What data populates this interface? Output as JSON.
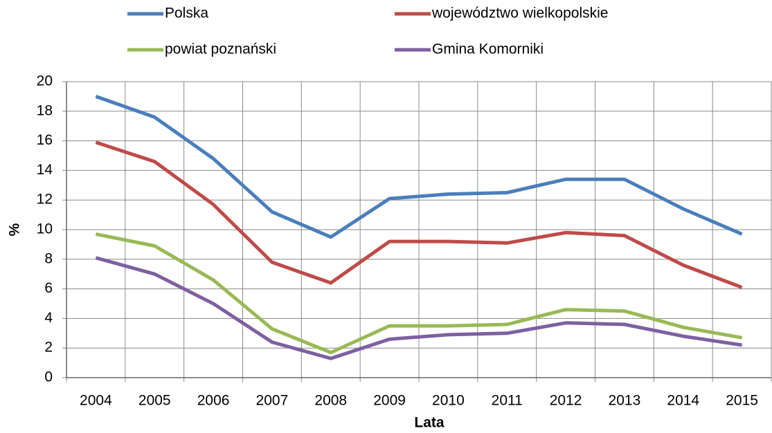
{
  "chart_data": {
    "type": "line",
    "x_label": "Lata",
    "y_label": "%",
    "categories": [
      "2004",
      "2005",
      "2006",
      "2007",
      "2008",
      "2009",
      "2010",
      "2011",
      "2012",
      "2013",
      "2014",
      "2015"
    ],
    "series": [
      {
        "name": "Polska",
        "color": "#4a7ebb",
        "values": [
          19,
          17.6,
          14.8,
          11.2,
          9.5,
          12.1,
          12.4,
          12.5,
          13.4,
          13.4,
          11.4,
          9.7
        ]
      },
      {
        "name": "województwo wielkopolskie",
        "color": "#be4b48",
        "values": [
          15.9,
          14.6,
          11.7,
          7.8,
          6.4,
          9.2,
          9.2,
          9.1,
          9.8,
          9.6,
          7.6,
          6.1
        ]
      },
      {
        "name": "powiat poznański",
        "color": "#98b954",
        "values": [
          9.7,
          8.9,
          6.6,
          3.3,
          1.7,
          3.5,
          3.5,
          3.6,
          4.6,
          4.5,
          3.4,
          2.7
        ]
      },
      {
        "name": "Gmina Komorniki",
        "color": "#7d60a0",
        "values": [
          8.1,
          7.0,
          5.0,
          2.4,
          1.3,
          2.6,
          2.9,
          3.0,
          3.7,
          3.6,
          2.8,
          2.2
        ]
      }
    ],
    "ylim": [
      0,
      20
    ],
    "yticks": [
      0,
      2,
      4,
      6,
      8,
      10,
      12,
      14,
      16,
      18,
      20
    ],
    "grid": true
  }
}
